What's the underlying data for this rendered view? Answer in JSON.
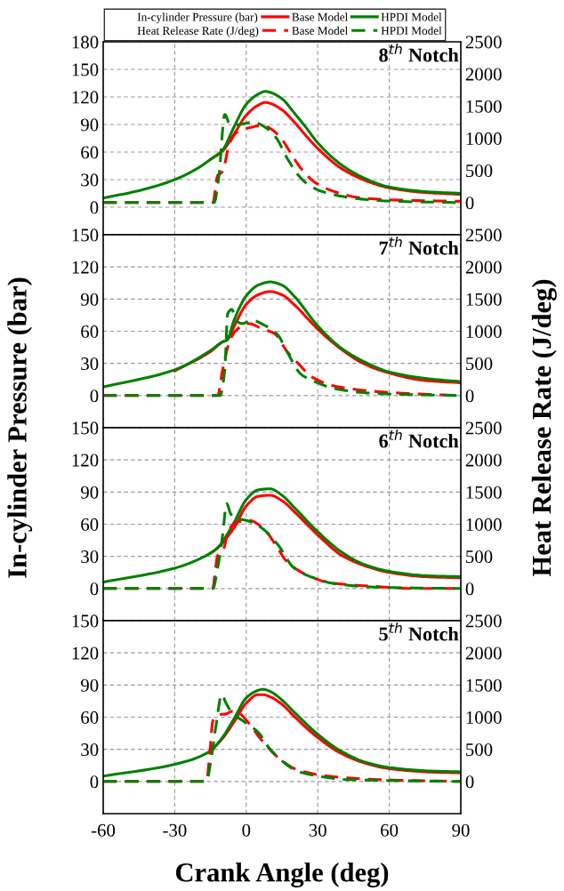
{
  "chart_data": [
    {
      "type": "line",
      "title": "8$^{th}$ Notch",
      "ylabel": "In-cylinder Pressure (bar)",
      "y2label": "Heat Release Rate (J/deg)",
      "annotations": [
        "In-cylinder Pressure (bar)",
        "Heat Release Rate (J/deg)"
      ],
      "legend": "top",
      "grid": true,
      "tick_labels": "y",
      "xlim": [
        -60,
        90
      ],
      "xticks": [
        -60,
        -30,
        0,
        30,
        60,
        90
      ],
      "ylim": [
        -30,
        180
      ],
      "yticks": [
        0,
        30,
        60,
        90,
        120,
        150,
        180
      ],
      "y2lim": [
        -500,
        2500
      ],
      "y2ticks": [
        0,
        500,
        1000,
        1500,
        2000,
        2500
      ],
      "series": [
        {
          "name": "Base Model",
          "color": "#ff0000",
          "line_style": "solid",
          "x": [
            -15,
            -10,
            -5,
            0,
            5,
            8,
            10,
            15,
            20,
            25,
            30,
            40,
            50,
            60,
            75,
            90
          ],
          "values": [
            52,
            61,
            80,
            100,
            111,
            114,
            113,
            106,
            93,
            78,
            64,
            42,
            29,
            21,
            16,
            14
          ]
        },
        {
          "name": "HPDI Model",
          "color": "#008000",
          "line_style": "solid",
          "x": [
            -60,
            -45,
            -30,
            -20,
            -15,
            -10,
            -5,
            0,
            5,
            8,
            10,
            15,
            20,
            25,
            30,
            40,
            50,
            60,
            75,
            90
          ],
          "values": [
            10,
            18,
            30,
            43,
            52,
            62,
            88,
            112,
            123,
            126,
            125,
            118,
            103,
            87,
            70,
            46,
            31,
            22,
            17,
            15
          ]
        },
        {
          "name": "Base Model",
          "color": "#ff0000",
          "line_style": "dashed",
          "axis": "y2",
          "x": [
            -60,
            -14,
            -12,
            -10,
            -7,
            -4,
            2,
            7,
            11,
            15,
            19,
            23,
            29,
            37,
            47,
            62,
            90
          ],
          "values": [
            0,
            0,
            420,
            480,
            920,
            1090,
            1170,
            1200,
            1130,
            980,
            750,
            530,
            310,
            170,
            80,
            40,
            20
          ]
        },
        {
          "name": "HPDI Model",
          "color": "#008000",
          "line_style": "dashed",
          "axis": "y2",
          "x": [
            -60,
            -13.5,
            -11.5,
            -9,
            -7,
            -4,
            3,
            8,
            12.7,
            17,
            22,
            26,
            32,
            47,
            62,
            90
          ],
          "values": [
            0,
            0,
            400,
            1370,
            1230,
            1210,
            1250,
            1170,
            1000,
            700,
            420,
            280,
            170,
            60,
            20,
            0
          ]
        }
      ]
    },
    {
      "type": "line",
      "title": "7$^{th}$ Notch",
      "grid": true,
      "tick_labels": "y",
      "xlim": [
        -60,
        90
      ],
      "xticks": [
        -60,
        -30,
        0,
        30,
        60,
        90
      ],
      "ylim": [
        -30,
        150
      ],
      "yticks": [
        0,
        30,
        60,
        90,
        120,
        150
      ],
      "y2lim": [
        -500,
        2500
      ],
      "y2ticks": [
        0,
        500,
        1000,
        1500,
        2000,
        2500
      ],
      "series": [
        {
          "color": "#ff0000",
          "line_style": "solid",
          "x": [
            -30,
            -15,
            -10,
            -8,
            -5,
            0,
            5,
            10,
            15,
            20,
            30,
            40,
            50,
            60,
            75,
            90
          ],
          "values": [
            23,
            41,
            50,
            52,
            65,
            85,
            94,
            97,
            94,
            85,
            62,
            43,
            29,
            21,
            14,
            12
          ]
        },
        {
          "color": "#008000",
          "line_style": "solid",
          "x": [
            -60,
            -30,
            -15,
            -10,
            -8,
            -5,
            0,
            5,
            10,
            15,
            20,
            30,
            40,
            50,
            60,
            75,
            90
          ],
          "values": [
            8,
            24,
            42,
            50,
            52,
            71,
            93,
            103,
            106,
            103,
            93,
            65,
            44,
            31,
            22,
            16,
            13
          ]
        },
        {
          "color": "#ff0000",
          "line_style": "dashed",
          "axis": "y2",
          "x": [
            -60,
            -12,
            -10,
            -7,
            -4.4,
            1,
            6.5,
            12,
            17,
            21.5,
            28,
            38,
            55.5,
            69,
            90
          ],
          "values": [
            0,
            0,
            380,
            840,
            1010,
            1120,
            1040,
            960,
            690,
            510,
            280,
            140,
            60,
            30,
            0
          ]
        },
        {
          "color": "#008000",
          "line_style": "dashed",
          "axis": "y2",
          "x": [
            -60,
            -11,
            -9,
            -7.8,
            -6,
            -4.4,
            -1.7,
            2.4,
            7.8,
            13.3,
            17,
            23,
            28,
            38,
            55.5,
            90
          ],
          "values": [
            0,
            0,
            400,
            1270,
            1340,
            1170,
            1120,
            1170,
            1090,
            940,
            690,
            330,
            230,
            100,
            30,
            0
          ]
        }
      ]
    },
    {
      "type": "line",
      "title": "6$^{th}$ Notch",
      "grid": true,
      "tick_labels": "y",
      "xlim": [
        -60,
        90
      ],
      "xticks": [
        -60,
        -30,
        0,
        30,
        60,
        90
      ],
      "ylim": [
        -30,
        150
      ],
      "yticks": [
        0,
        30,
        60,
        90,
        120,
        150
      ],
      "y2lim": [
        -500,
        2500
      ],
      "y2ticks": [
        0,
        500,
        1000,
        1500,
        2000,
        2500
      ],
      "series": [
        {
          "color": "#ff0000",
          "line_style": "solid",
          "x": [
            -15,
            -12,
            -5,
            0,
            5,
            10,
            15,
            20,
            30,
            40,
            50,
            60,
            75,
            90
          ],
          "values": [
            33,
            38,
            57,
            77,
            86,
            87,
            82,
            72,
            50,
            31,
            21,
            15,
            11,
            10
          ]
        },
        {
          "color": "#008000",
          "line_style": "solid",
          "x": [
            -60,
            -30,
            -15,
            -12,
            -5,
            0,
            5,
            10,
            15,
            20,
            30,
            40,
            50,
            60,
            75,
            90
          ],
          "values": [
            6,
            19,
            33,
            38,
            62,
            83,
            92,
            93,
            87,
            76,
            53,
            34,
            22,
            16,
            12,
            11
          ]
        },
        {
          "color": "#ff0000",
          "line_style": "dashed",
          "axis": "y2",
          "x": [
            -60,
            -14.2,
            -11.9,
            -9.9,
            -7.1,
            -3.1,
            1,
            6.5,
            12,
            17,
            25.5,
            35,
            55.5,
            70,
            90
          ],
          "values": [
            0,
            0,
            520,
            580,
            930,
            1040,
            1060,
            960,
            700,
            420,
            210,
            90,
            30,
            0,
            0
          ]
        },
        {
          "color": "#008000",
          "line_style": "dashed",
          "axis": "y2",
          "x": [
            -60,
            -14,
            -12,
            -9.9,
            -8.2,
            -6.5,
            -4.4,
            0,
            6.5,
            13.3,
            20,
            28,
            38,
            55.5,
            90
          ],
          "values": [
            0,
            0,
            320,
            830,
            1320,
            1160,
            1090,
            1060,
            940,
            680,
            320,
            170,
            70,
            20,
            0
          ]
        }
      ]
    },
    {
      "type": "line",
      "title": "5$^{th}$ Notch",
      "xlabel": "Crank Angle (deg)",
      "grid": true,
      "xlim": [
        -60,
        90
      ],
      "xticks": [
        -60,
        -30,
        0,
        30,
        60,
        90
      ],
      "ylim": [
        -30,
        150
      ],
      "yticks": [
        0,
        30,
        60,
        90,
        120,
        150
      ],
      "y2lim": [
        -500,
        2500
      ],
      "y2ticks": [
        0,
        500,
        1000,
        1500,
        2000,
        2500
      ],
      "series": [
        {
          "color": "#ff0000",
          "line_style": "solid",
          "x": [
            -15.3,
            -10,
            -5,
            0,
            5,
            7,
            10,
            15,
            20,
            30,
            40,
            50,
            60,
            75,
            90
          ],
          "values": [
            28,
            40,
            56,
            73,
            81,
            81,
            79,
            72,
            61,
            41,
            26,
            17,
            12,
            9,
            8
          ]
        },
        {
          "color": "#008000",
          "line_style": "solid",
          "x": [
            -60,
            -30,
            -15.3,
            -10,
            -5,
            0,
            5,
            7,
            10,
            15,
            20,
            30,
            40,
            50,
            60,
            75,
            90
          ],
          "values": [
            5,
            16,
            28,
            41,
            59,
            78,
            85,
            86,
            84,
            76,
            65,
            44,
            28,
            18,
            13,
            10,
            9
          ]
        },
        {
          "color": "#ff0000",
          "line_style": "dashed",
          "axis": "y2",
          "x": [
            -60,
            -16.7,
            -15.3,
            -14,
            -11.2,
            -8.5,
            -6,
            -3,
            1,
            6.5,
            14.7,
            21.5,
            35,
            55.5,
            90
          ],
          "values": [
            0,
            0,
            430,
            940,
            1040,
            1050,
            1090,
            1060,
            910,
            640,
            330,
            180,
            80,
            30,
            0
          ]
        },
        {
          "color": "#008000",
          "line_style": "dashed",
          "axis": "y2",
          "x": [
            -60,
            -16.7,
            -14.6,
            -12.6,
            -10.3,
            -8.5,
            -5.8,
            -1.7,
            5.1,
            9.2,
            14.7,
            21.5,
            31,
            42,
            90
          ],
          "values": [
            0,
            0,
            380,
            890,
            1350,
            1220,
            1060,
            950,
            760,
            540,
            330,
            160,
            80,
            30,
            0
          ]
        }
      ]
    }
  ]
}
